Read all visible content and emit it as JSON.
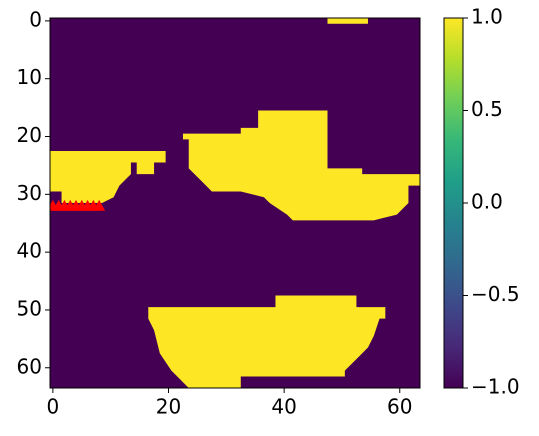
{
  "chart_data": {
    "type": "heatmap",
    "xlim": [
      -0.5,
      63.5
    ],
    "ylim": [
      63.5,
      -0.5
    ],
    "xticks": [
      0,
      20,
      40,
      60
    ],
    "yticks": [
      0,
      10,
      20,
      30,
      40,
      50,
      60
    ],
    "background_value": -1,
    "regions": [
      {
        "value": 1,
        "polygon": [
          [
            47.5,
            -0.5
          ],
          [
            54.5,
            -0.5
          ],
          [
            54.5,
            0.5
          ],
          [
            47.5,
            0.5
          ]
        ]
      },
      {
        "value": 1,
        "polygon": [
          [
            -0.5,
            22.5
          ],
          [
            19.5,
            22.5
          ],
          [
            19.5,
            24.5
          ],
          [
            17.5,
            24.5
          ],
          [
            17.5,
            26.5
          ],
          [
            14.5,
            26.5
          ],
          [
            14.5,
            24.5
          ],
          [
            13.5,
            24.5
          ],
          [
            13.5,
            26.5
          ],
          [
            12.5,
            27.5
          ],
          [
            11.5,
            28.5
          ],
          [
            10.5,
            30.5
          ],
          [
            8.5,
            31.5
          ],
          [
            1.5,
            31.5
          ],
          [
            1.5,
            29.5
          ],
          [
            -0.5,
            29.5
          ]
        ]
      },
      {
        "value": 1,
        "polygon": [
          [
            35.5,
            15.5
          ],
          [
            47.5,
            15.5
          ],
          [
            47.5,
            25.5
          ],
          [
            53.5,
            25.5
          ],
          [
            53.5,
            26.5
          ],
          [
            63.5,
            26.5
          ],
          [
            63.5,
            28.5
          ],
          [
            61.5,
            28.5
          ],
          [
            61.5,
            31.5
          ],
          [
            60.5,
            32.5
          ],
          [
            59.5,
            33.5
          ],
          [
            55.5,
            34.5
          ],
          [
            41.5,
            34.5
          ],
          [
            40.5,
            33.5
          ],
          [
            37.5,
            31.5
          ],
          [
            36.5,
            30.5
          ],
          [
            32.5,
            29.5
          ],
          [
            27.5,
            29.5
          ],
          [
            25.5,
            27.5
          ],
          [
            23.5,
            25.5
          ],
          [
            23.5,
            20.5
          ],
          [
            22.5,
            20.5
          ],
          [
            22.5,
            19.5
          ],
          [
            32.5,
            19.5
          ],
          [
            32.5,
            18.5
          ],
          [
            35.5,
            18.5
          ]
        ]
      },
      {
        "value": 1,
        "polygon": [
          [
            38.5,
            47.5
          ],
          [
            52.5,
            47.5
          ],
          [
            52.5,
            49.5
          ],
          [
            57.5,
            49.5
          ],
          [
            57.5,
            51.5
          ],
          [
            56.5,
            51.5
          ],
          [
            55.5,
            54.5
          ],
          [
            54.5,
            56.5
          ],
          [
            52.5,
            58.5
          ],
          [
            50.5,
            60.5
          ],
          [
            50.5,
            61.5
          ],
          [
            32.5,
            61.5
          ],
          [
            32.5,
            63.5
          ],
          [
            23.5,
            63.5
          ],
          [
            22.5,
            62.5
          ],
          [
            20.5,
            60.5
          ],
          [
            18.5,
            57.5
          ],
          [
            17.5,
            53.5
          ],
          [
            16.5,
            51.5
          ],
          [
            16.5,
            49.5
          ],
          [
            38.5,
            49.5
          ]
        ]
      }
    ],
    "markers": {
      "color": "#ff0000",
      "x": [
        0,
        1,
        2,
        3,
        4,
        5,
        6,
        7,
        8
      ],
      "y": [
        32,
        32,
        32,
        32,
        32,
        32,
        32,
        32,
        32
      ]
    },
    "colorbar": {
      "lim": [
        -1,
        1
      ],
      "colormap": [
        "#440154",
        "#482878",
        "#3e4989",
        "#31688e",
        "#26828e",
        "#1f9e89",
        "#35b779",
        "#6ece58",
        "#b5de2b",
        "#fde725"
      ],
      "ticks": [
        {
          "value": -1,
          "label": "−1.0"
        },
        {
          "value": -0.5,
          "label": "−0.5"
        },
        {
          "value": 0,
          "label": "0.0"
        },
        {
          "value": 0.5,
          "label": "0.5"
        },
        {
          "value": 1,
          "label": "1.0"
        }
      ]
    }
  }
}
